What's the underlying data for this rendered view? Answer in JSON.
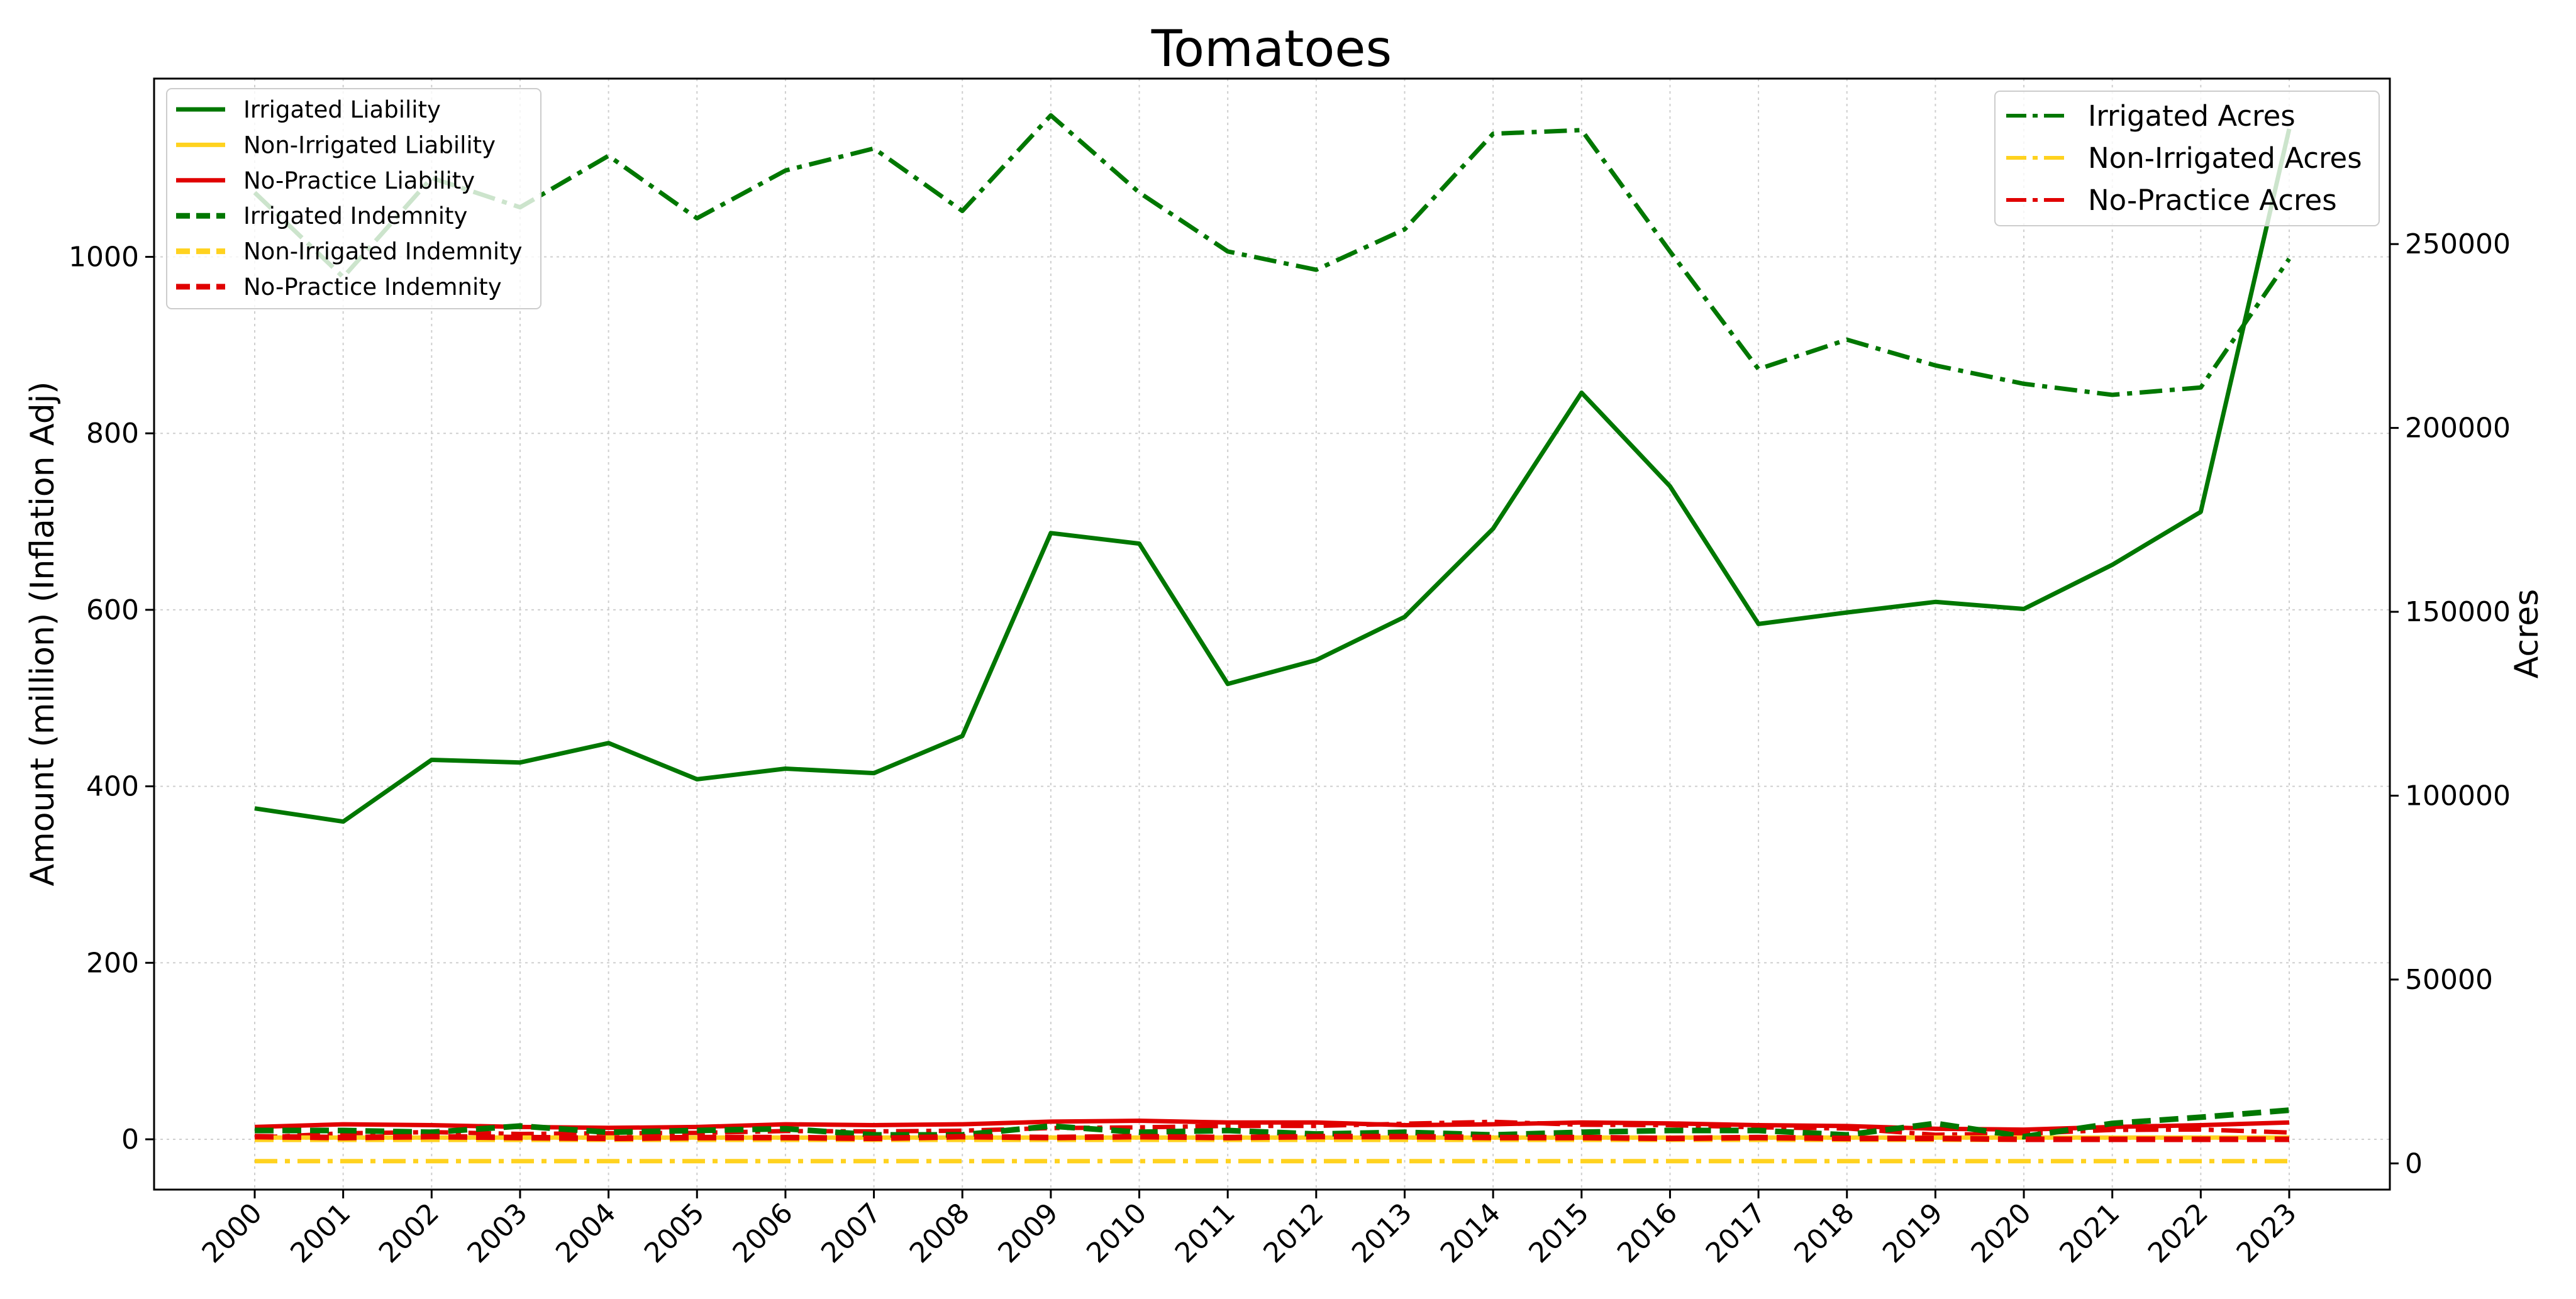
{
  "chart_data": {
    "type": "line",
    "title": "Tomatoes",
    "ylabel": "Amount (million) (Inflation Adj)",
    "ylabel_right": "Acres",
    "xlabel": "",
    "x": [
      "2000",
      "2001",
      "2002",
      "2003",
      "2004",
      "2005",
      "2006",
      "2007",
      "2008",
      "2009",
      "2010",
      "2011",
      "2012",
      "2013",
      "2014",
      "2015",
      "2016",
      "2017",
      "2018",
      "2019",
      "2020",
      "2021",
      "2022",
      "2023"
    ],
    "ylim": [
      -57,
      1202
    ],
    "ylim_right": [
      -7125,
      295000
    ],
    "yticks_left": [
      "0",
      "200",
      "400",
      "600",
      "800",
      "1000"
    ],
    "yticks_left_values": [
      0,
      200,
      400,
      600,
      800,
      1000
    ],
    "yticks_right": [
      "0",
      "50000",
      "100000",
      "150000",
      "200000",
      "250000"
    ],
    "yticks_right_values": [
      0,
      50000,
      100000,
      150000,
      200000,
      250000
    ],
    "grid": true,
    "legend_left_placement": "top-left",
    "legend_right_placement": "top-right",
    "series_left": [
      {
        "name": "Irrigated Liability",
        "color": "#007700",
        "style": "solid",
        "values": [
          375,
          360,
          430,
          427,
          449,
          408,
          420,
          415,
          457,
          687,
          675,
          516,
          543,
          592,
          692,
          846,
          740,
          584,
          597,
          609,
          601,
          651,
          711,
          1145
        ]
      },
      {
        "name": "Non-Irrigated Liability",
        "color": "#ffd21f",
        "style": "solid",
        "values": [
          2,
          2,
          2,
          2,
          2,
          2,
          2,
          2,
          2,
          2,
          2,
          2,
          2,
          2,
          2,
          2,
          2,
          2,
          2,
          2,
          2,
          2,
          2,
          2
        ]
      },
      {
        "name": "No-Practice Liability",
        "color": "#e00000",
        "style": "solid",
        "values": [
          14,
          17,
          16,
          14,
          13,
          14,
          17,
          16,
          17,
          20,
          21,
          19,
          19,
          16,
          17,
          19,
          18,
          16,
          15,
          12,
          11,
          14,
          16,
          19
        ]
      },
      {
        "name": "Irrigated Indemnity",
        "color": "#007700",
        "style": "dashed",
        "values": [
          10,
          10,
          8,
          15,
          8,
          10,
          12,
          5,
          5,
          15,
          8,
          10,
          6,
          8,
          5,
          8,
          10,
          10,
          5,
          18,
          3,
          18,
          25,
          33
        ]
      },
      {
        "name": "Non-Irrigated Indemnity",
        "color": "#ffd21f",
        "style": "dashed",
        "values": [
          0,
          0,
          0,
          0,
          0,
          0,
          0,
          0,
          0,
          0,
          0,
          0,
          0,
          0,
          0,
          0,
          0,
          0,
          0,
          0,
          0,
          0,
          0,
          0
        ]
      },
      {
        "name": "No-Practice Indemnity",
        "color": "#e00000",
        "style": "dashed",
        "values": [
          3,
          2,
          3,
          2,
          1,
          2,
          2,
          1,
          3,
          2,
          3,
          2,
          3,
          3,
          2,
          2,
          1,
          2,
          1,
          1,
          0,
          0,
          0,
          0
        ]
      }
    ],
    "series_right": [
      {
        "name": "Irrigated Acres",
        "color": "#007700",
        "style": "dashdot",
        "values": [
          264000,
          241000,
          268000,
          260000,
          274000,
          257000,
          270000,
          276000,
          259000,
          285000,
          264000,
          248000,
          243000,
          254000,
          280000,
          281000,
          248000,
          216000,
          224000,
          217000,
          212000,
          209000,
          211000,
          246000
        ]
      },
      {
        "name": "Non-Irrigated Acres",
        "color": "#ffd21f",
        "style": "dashdot",
        "values": [
          600,
          600,
          600,
          600,
          600,
          600,
          600,
          600,
          600,
          600,
          600,
          600,
          600,
          600,
          600,
          600,
          600,
          600,
          600,
          600,
          600,
          600,
          600,
          600
        ]
      },
      {
        "name": "No-Practice Acres",
        "color": "#e00000",
        "style": "dashdot",
        "values": [
          7000,
          8200,
          8500,
          8000,
          8200,
          8300,
          8800,
          8700,
          8900,
          9600,
          9800,
          10200,
          10200,
          10800,
          11300,
          10500,
          10400,
          9800,
          9500,
          7800,
          8100,
          9100,
          9200,
          8400
        ]
      }
    ]
  }
}
